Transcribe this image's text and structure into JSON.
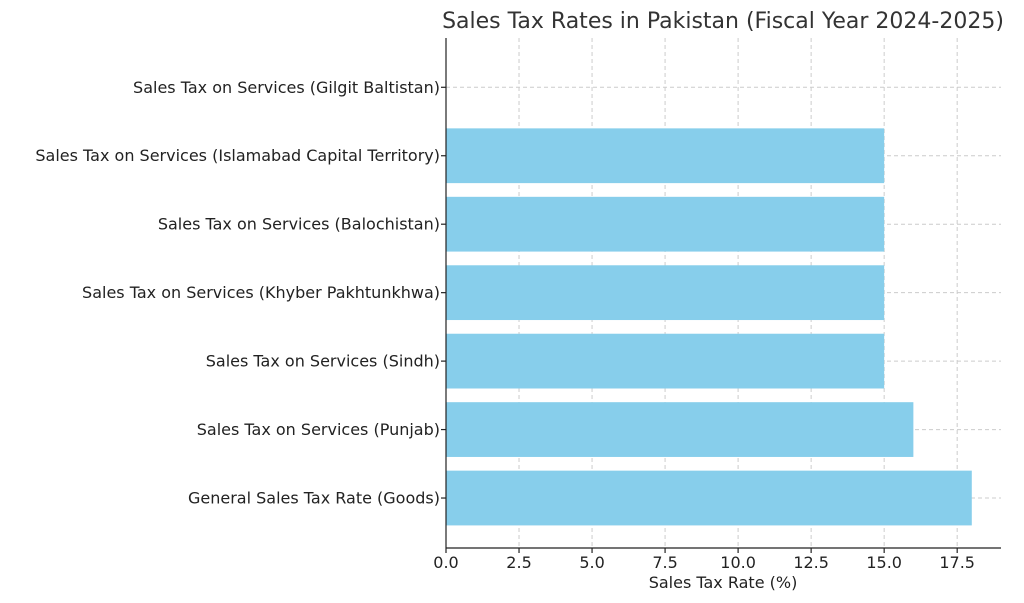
{
  "chart_data": {
    "type": "bar",
    "orientation": "horizontal",
    "title": "Sales Tax Rates in Pakistan (Fiscal Year 2024-2025)",
    "xlabel": "Sales Tax Rate (%)",
    "ylabel": "",
    "categories": [
      "General Sales Tax Rate (Goods)",
      "Sales Tax on Services (Punjab)",
      "Sales Tax on Services (Sindh)",
      "Sales Tax on Services (Khyber Pakhtunkhwa)",
      "Sales Tax on Services (Balochistan)",
      "Sales Tax on Services (Islamabad Capital Territory)",
      "Sales Tax on Services (Gilgit Baltistan)"
    ],
    "values": [
      18,
      16,
      15,
      15,
      15,
      15,
      0
    ],
    "xlim": [
      0,
      19
    ],
    "xticks": [
      0.0,
      2.5,
      5.0,
      7.5,
      10.0,
      12.5,
      15.0,
      17.5
    ],
    "xtick_labels": [
      "0.0",
      "2.5",
      "5.0",
      "7.5",
      "10.0",
      "12.5",
      "15.0",
      "17.5"
    ],
    "grid": true,
    "bar_color": "#87CEEB"
  }
}
